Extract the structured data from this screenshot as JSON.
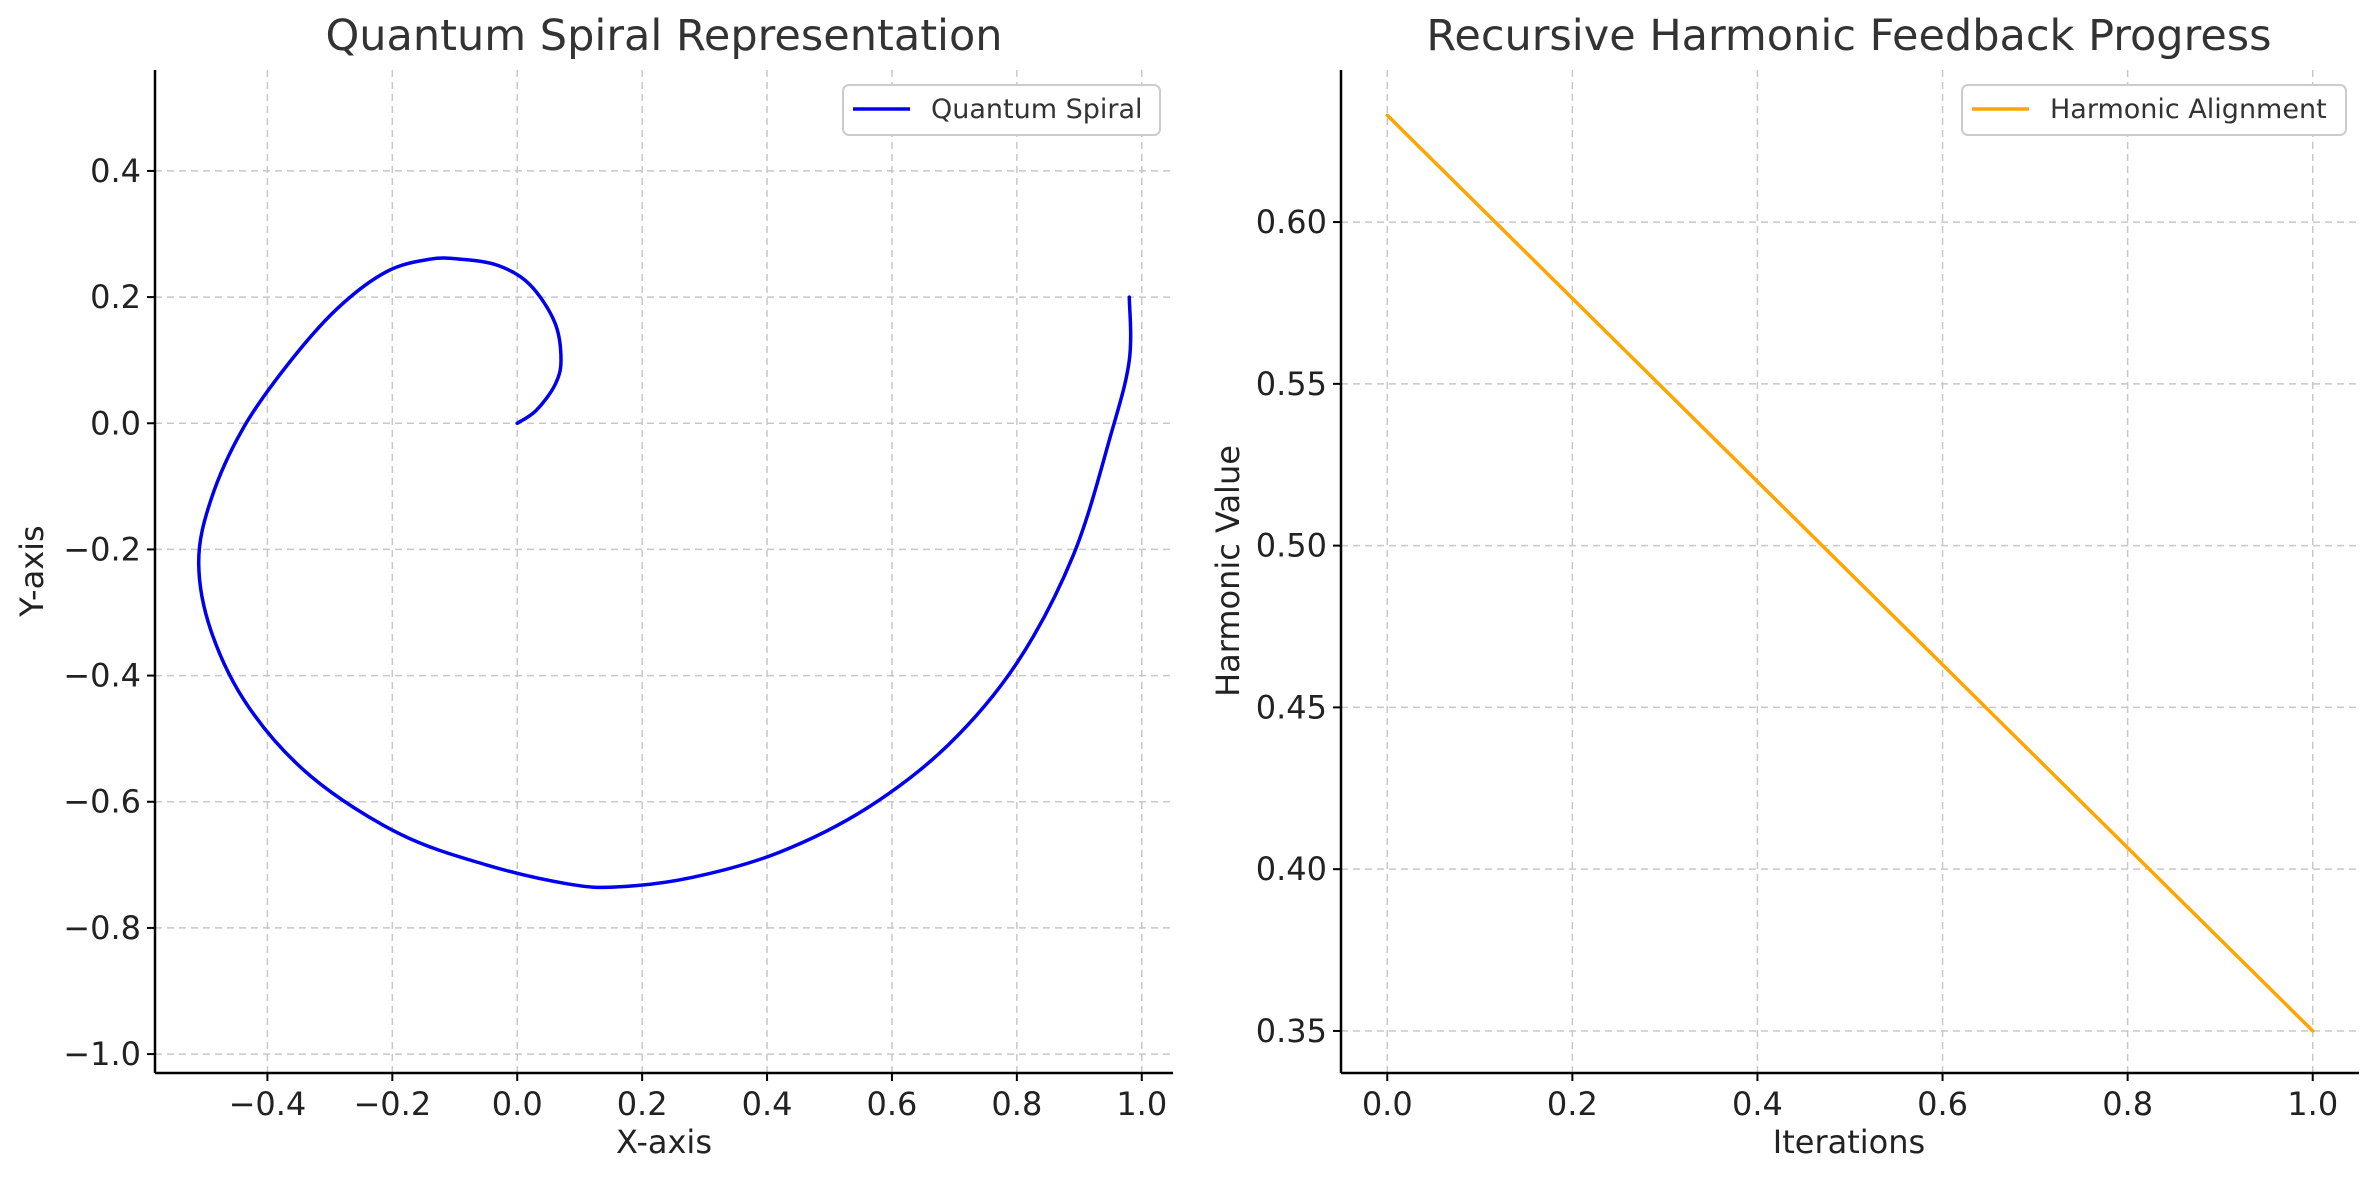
{
  "chart_data": [
    {
      "type": "line",
      "title": "Quantum Spiral Representation",
      "xlabel": "X-axis",
      "ylabel": "Y-axis",
      "xlim": [
        -0.58,
        1.05
      ],
      "ylim": [
        -1.03,
        0.56
      ],
      "xticks": [
        -0.4,
        -0.2,
        0.0,
        0.2,
        0.4,
        0.6,
        0.8,
        1.0
      ],
      "yticks": [
        -1.0,
        -0.8,
        -0.6,
        -0.4,
        -0.2,
        0.0,
        0.2,
        0.4
      ],
      "xtick_labels": [
        "−0.4",
        "−0.2",
        "0.0",
        "0.2",
        "0.4",
        "0.6",
        "0.8",
        "1.0"
      ],
      "ytick_labels": [
        "−1.0",
        "−0.8",
        "−0.6",
        "−0.4",
        "−0.2",
        "0.0",
        "0.2",
        "0.4"
      ],
      "grid": true,
      "legend_position": "top-right",
      "series": [
        {
          "name": "Quantum Spiral",
          "color": "#0000ee",
          "x": [
            0.0,
            0.03,
            0.06,
            0.07,
            0.06,
            0.02,
            -0.03,
            -0.09,
            -0.14,
            -0.21,
            -0.29,
            -0.37,
            -0.44,
            -0.49,
            -0.51,
            -0.49,
            -0.43,
            -0.33,
            -0.19,
            -0.05,
            0.08,
            0.16,
            0.28,
            0.42,
            0.56,
            0.69,
            0.8,
            0.89,
            0.95,
            0.98,
            0.98
          ],
          "y": [
            0.0,
            0.02,
            0.06,
            0.1,
            0.16,
            0.22,
            0.25,
            0.26,
            0.26,
            0.24,
            0.18,
            0.09,
            -0.01,
            -0.12,
            -0.22,
            -0.33,
            -0.45,
            -0.56,
            -0.65,
            -0.7,
            -0.73,
            -0.735,
            -0.72,
            -0.68,
            -0.61,
            -0.51,
            -0.38,
            -0.21,
            -0.02,
            0.1,
            0.2
          ]
        }
      ]
    },
    {
      "type": "line",
      "title": "Recursive Harmonic Feedback Progress",
      "xlabel": "Iterations",
      "ylabel": "Harmonic Value",
      "xlim": [
        -0.05,
        1.05
      ],
      "ylim": [
        0.337,
        0.647
      ],
      "xticks": [
        0.0,
        0.2,
        0.4,
        0.6,
        0.8,
        1.0
      ],
      "yticks": [
        0.35,
        0.4,
        0.45,
        0.5,
        0.55,
        0.6
      ],
      "xtick_labels": [
        "0.0",
        "0.2",
        "0.4",
        "0.6",
        "0.8",
        "1.0"
      ],
      "ytick_labels": [
        "0.35",
        "0.40",
        "0.45",
        "0.50",
        "0.55",
        "0.60"
      ],
      "grid": true,
      "legend_position": "top-right",
      "series": [
        {
          "name": "Harmonic Alignment",
          "color": "#ffa500",
          "x": [
            0.0,
            1.0
          ],
          "y": [
            0.633,
            0.35
          ]
        }
      ]
    }
  ]
}
